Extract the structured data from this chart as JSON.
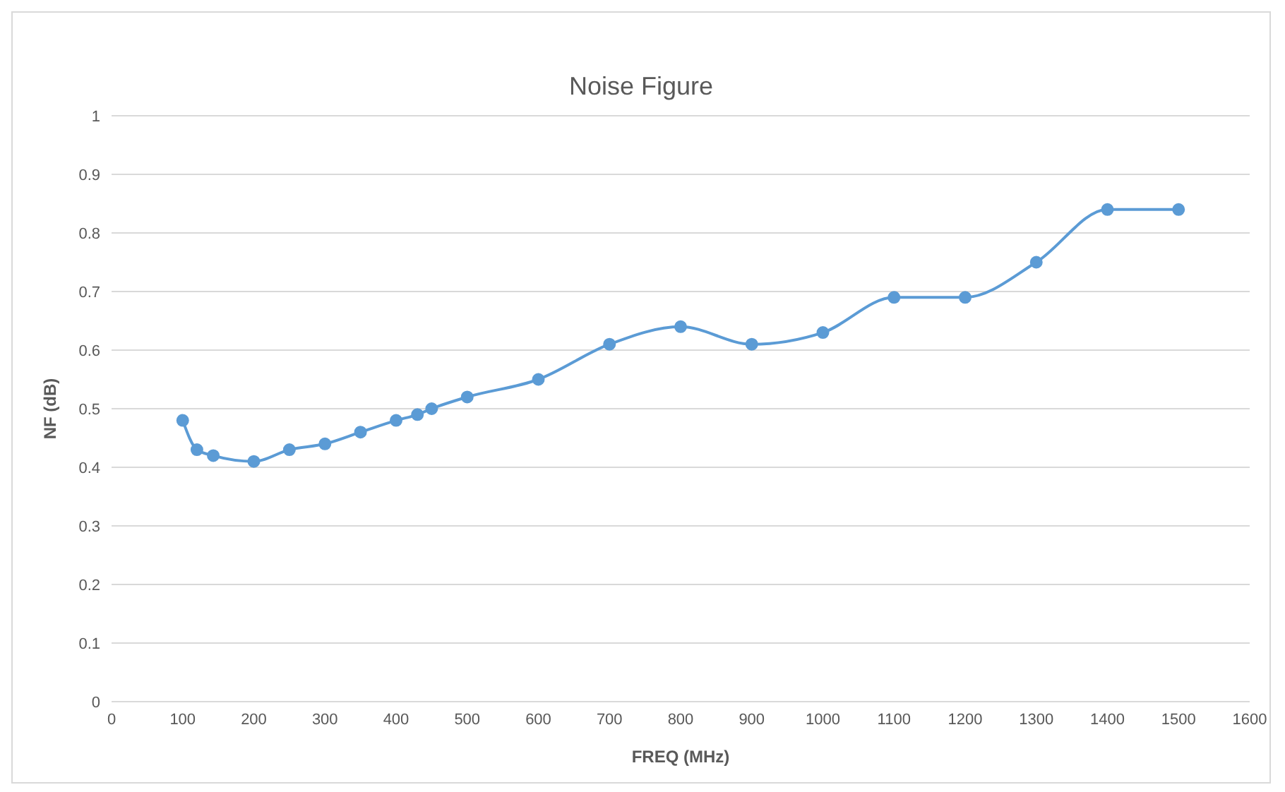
{
  "chart_data": {
    "type": "line",
    "title": "Noise Figure",
    "xlabel": "FREQ (MHz)",
    "ylabel": "NF (dB)",
    "x": [
      100,
      120,
      143,
      200,
      250,
      300,
      350,
      400,
      430,
      450,
      500,
      600,
      700,
      800,
      900,
      1000,
      1100,
      1200,
      1300,
      1400,
      1500
    ],
    "series": [
      {
        "color": "#5b9bd5",
        "values": [
          0.48,
          0.43,
          0.42,
          0.41,
          0.43,
          0.44,
          0.46,
          0.48,
          0.49,
          0.5,
          0.52,
          0.55,
          0.61,
          0.64,
          0.61,
          0.63,
          0.69,
          0.69,
          0.75,
          0.84,
          0.84
        ]
      }
    ],
    "xlim": [
      0,
      1600
    ],
    "xticks": [
      0,
      100,
      200,
      300,
      400,
      500,
      600,
      700,
      800,
      900,
      1000,
      1100,
      1200,
      1300,
      1400,
      1500,
      1600
    ],
    "ylim": [
      0,
      1
    ],
    "yticks": [
      0,
      0.1,
      0.2,
      0.3,
      0.4,
      0.5,
      0.6,
      0.7,
      0.8,
      0.9,
      1
    ],
    "grid": "y",
    "legend": false,
    "marker": "circle",
    "line_style": "solid"
  }
}
